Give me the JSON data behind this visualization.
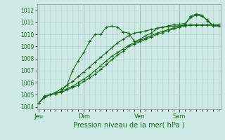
{
  "xlabel": "Pression niveau de la mer( hPa )",
  "background_color": "#cdeae4",
  "grid_color": "#aed4cc",
  "line_color": "#1a6b1a",
  "ylim": [
    1003.8,
    1012.5
  ],
  "yticks": [
    1004,
    1005,
    1006,
    1007,
    1008,
    1009,
    1010,
    1011,
    1012
  ],
  "x_tick_labels": [
    "Jeu",
    "Dim",
    "Ven",
    "Sam"
  ],
  "x_tick_positions": [
    0,
    8,
    18,
    25
  ],
  "x_vlines": [
    0,
    8,
    18,
    25
  ],
  "num_points": 33,
  "series1": [
    1004.3,
    1004.9,
    1005.0,
    1005.1,
    1005.3,
    1005.8,
    1007.0,
    1007.8,
    1008.5,
    1009.4,
    1010.0,
    1010.0,
    1010.6,
    1010.7,
    1010.6,
    1010.2,
    1010.1,
    1009.4,
    1009.6,
    1009.9,
    1010.1,
    1010.5,
    1010.6,
    1010.65,
    1010.7,
    1010.7,
    1010.8,
    1011.5,
    1011.7,
    1011.6,
    1011.1,
    1010.7,
    1010.7
  ],
  "series2": [
    1004.3,
    1004.8,
    1005.0,
    1005.1,
    1005.2,
    1005.4,
    1005.6,
    1005.8,
    1006.1,
    1006.4,
    1006.7,
    1007.1,
    1007.5,
    1007.9,
    1008.3,
    1008.6,
    1009.0,
    1009.2,
    1009.4,
    1009.6,
    1009.8,
    1010.0,
    1010.15,
    1010.3,
    1010.45,
    1010.6,
    1010.7,
    1010.75,
    1010.75,
    1010.75,
    1010.75,
    1010.75,
    1010.75
  ],
  "series3": [
    1004.3,
    1004.8,
    1005.0,
    1005.1,
    1005.3,
    1005.5,
    1005.7,
    1006.0,
    1006.3,
    1006.6,
    1007.0,
    1007.4,
    1007.8,
    1008.2,
    1008.5,
    1008.8,
    1009.1,
    1009.3,
    1009.5,
    1009.7,
    1009.9,
    1010.1,
    1010.25,
    1010.4,
    1010.55,
    1010.7,
    1010.75,
    1010.8,
    1010.8,
    1010.8,
    1010.8,
    1010.8,
    1010.8
  ],
  "series4": [
    1004.3,
    1004.85,
    1005.0,
    1005.2,
    1005.5,
    1005.8,
    1006.1,
    1006.5,
    1006.9,
    1007.3,
    1007.7,
    1008.1,
    1008.5,
    1008.9,
    1009.3,
    1009.6,
    1009.9,
    1010.1,
    1010.2,
    1010.3,
    1010.4,
    1010.5,
    1010.6,
    1010.7,
    1010.8,
    1010.85,
    1010.9,
    1011.4,
    1011.6,
    1011.5,
    1011.2,
    1010.7,
    1010.7
  ]
}
